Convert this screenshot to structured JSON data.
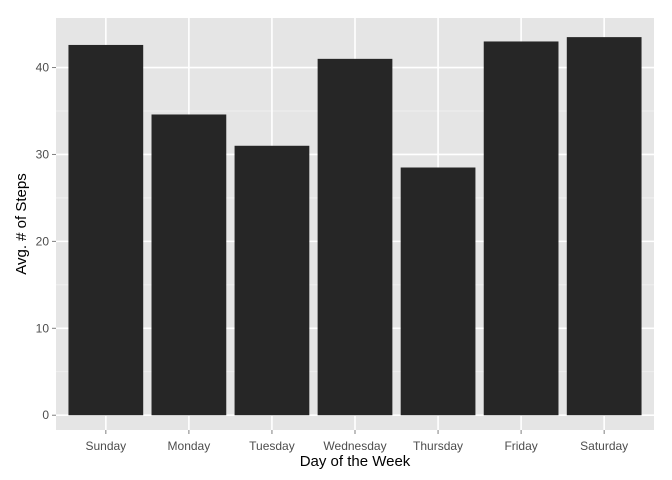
{
  "chart_data": {
    "type": "bar",
    "title": "",
    "xlabel": "Day of the Week",
    "ylabel": "Avg. # of Steps",
    "categories": [
      "Sunday",
      "Monday",
      "Tuesday",
      "Wednesday",
      "Thursday",
      "Friday",
      "Saturday"
    ],
    "values": [
      42.6,
      34.6,
      31.0,
      41.0,
      28.5,
      43.0,
      43.5
    ],
    "ylim": [
      -1.7,
      45.7
    ],
    "yticks": [
      0,
      10,
      20,
      30,
      40
    ],
    "grid": true,
    "legend": "none",
    "colors": {
      "panel_background": "#e5e5e5",
      "gridline": "#ffffff",
      "bar_fill": "#262626"
    }
  }
}
